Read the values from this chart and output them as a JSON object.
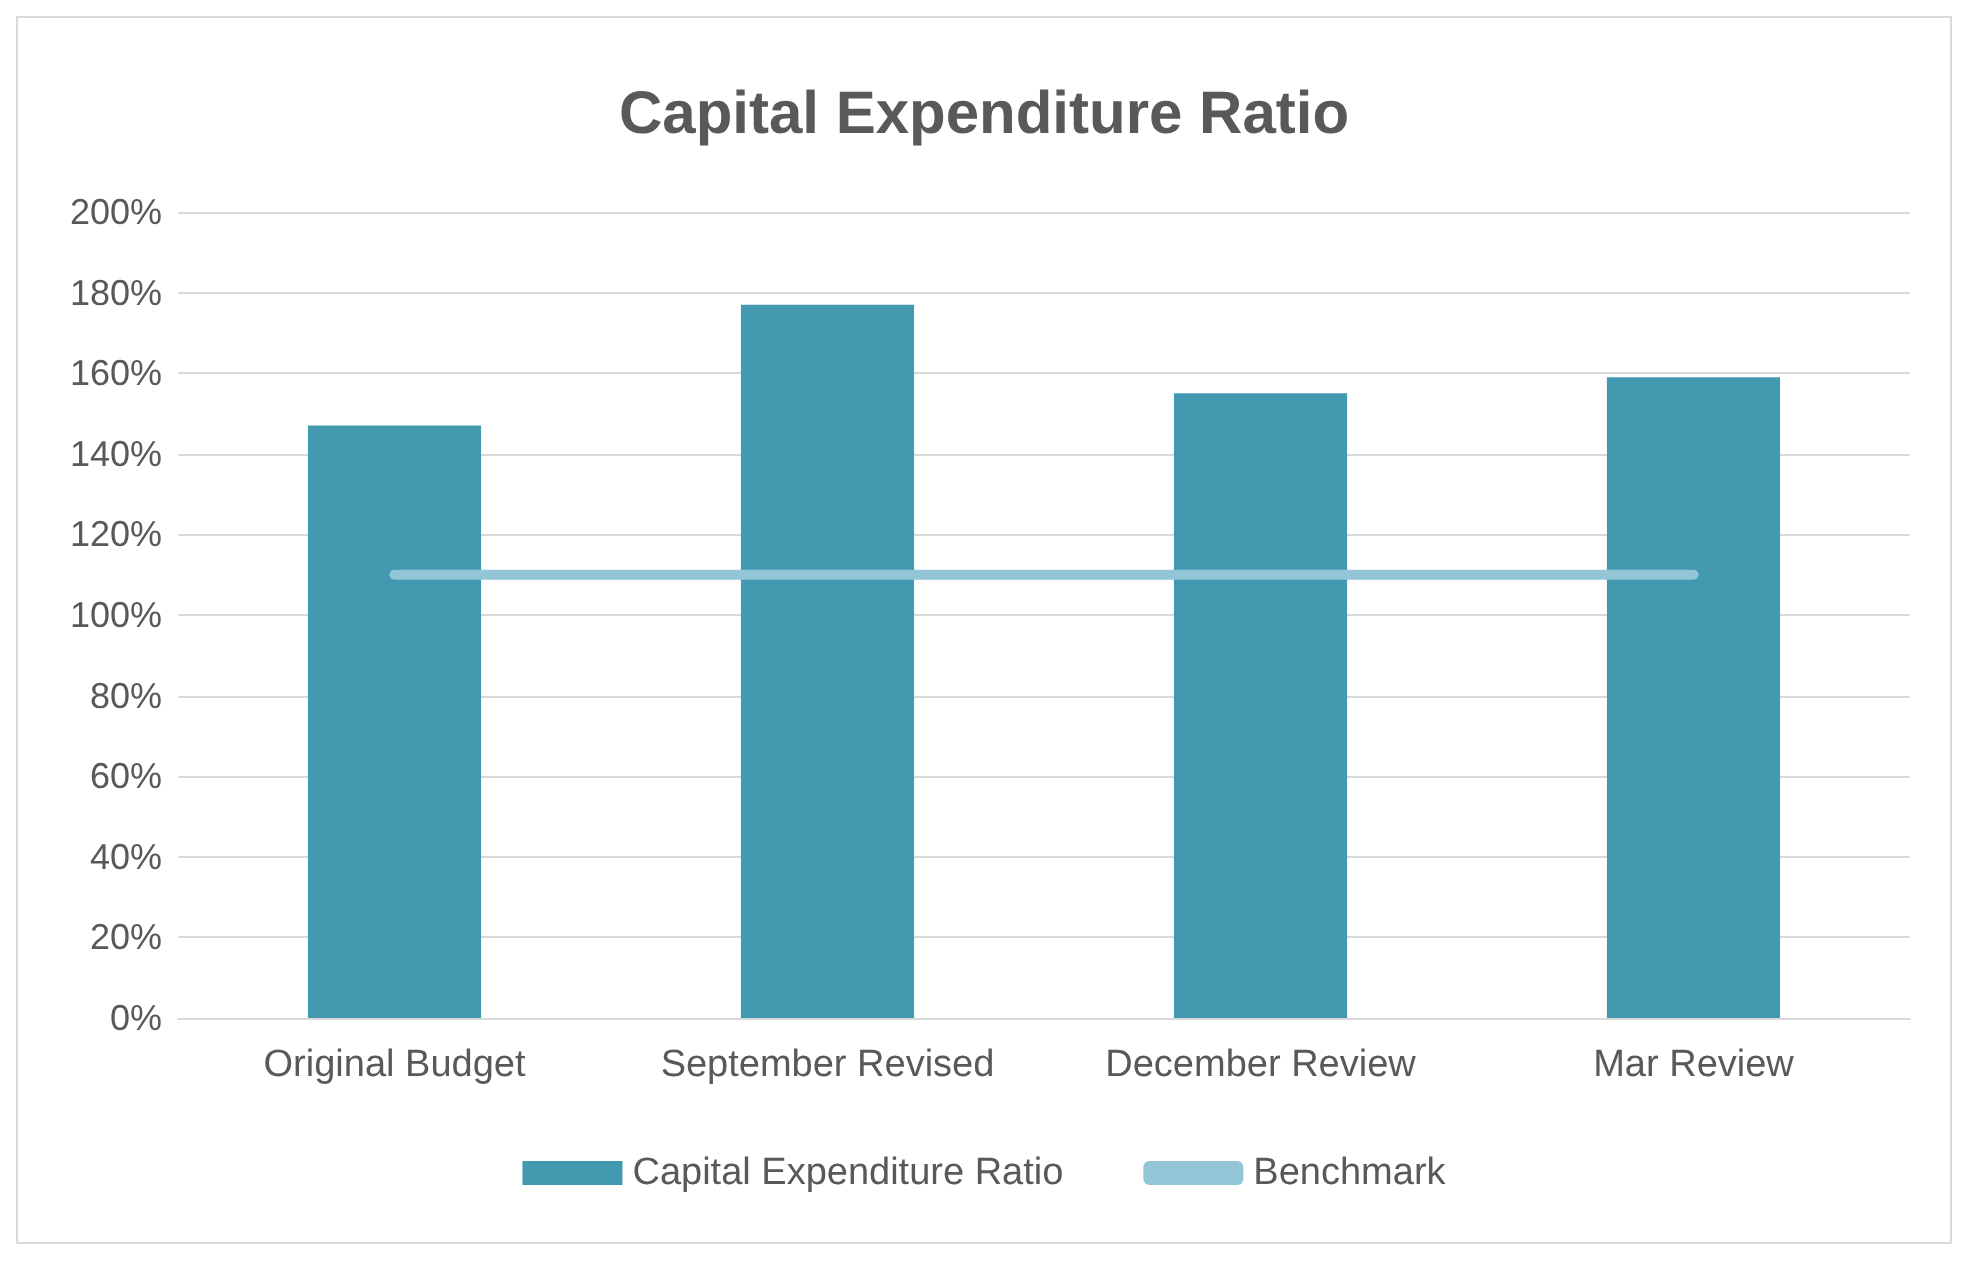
{
  "chart_data": {
    "type": "bar",
    "title": "Capital Expenditure Ratio",
    "categories": [
      "Original Budget",
      "September Revised",
      "December Review",
      "Mar Review"
    ],
    "series": [
      {
        "name": "Capital Expenditure Ratio",
        "color": "#4299b0",
        "values": [
          147,
          177,
          155,
          159
        ]
      },
      {
        "name": "Benchmark",
        "type": "line",
        "color": "#92c5d6",
        "values": [
          110,
          110,
          110,
          110
        ]
      }
    ],
    "ylim": [
      0,
      200
    ],
    "yticks": [
      {
        "value": 0,
        "label": "0%"
      },
      {
        "value": 20,
        "label": "20%"
      },
      {
        "value": 40,
        "label": "40%"
      },
      {
        "value": 60,
        "label": "60%"
      },
      {
        "value": 80,
        "label": "80%"
      },
      {
        "value": 100,
        "label": "100%"
      },
      {
        "value": 120,
        "label": "120%"
      },
      {
        "value": 140,
        "label": "140%"
      },
      {
        "value": 160,
        "label": "160%"
      },
      {
        "value": 180,
        "label": "180%"
      },
      {
        "value": 200,
        "label": "200%"
      }
    ],
    "grid": "y",
    "legend": "bottom",
    "marker": "none"
  }
}
